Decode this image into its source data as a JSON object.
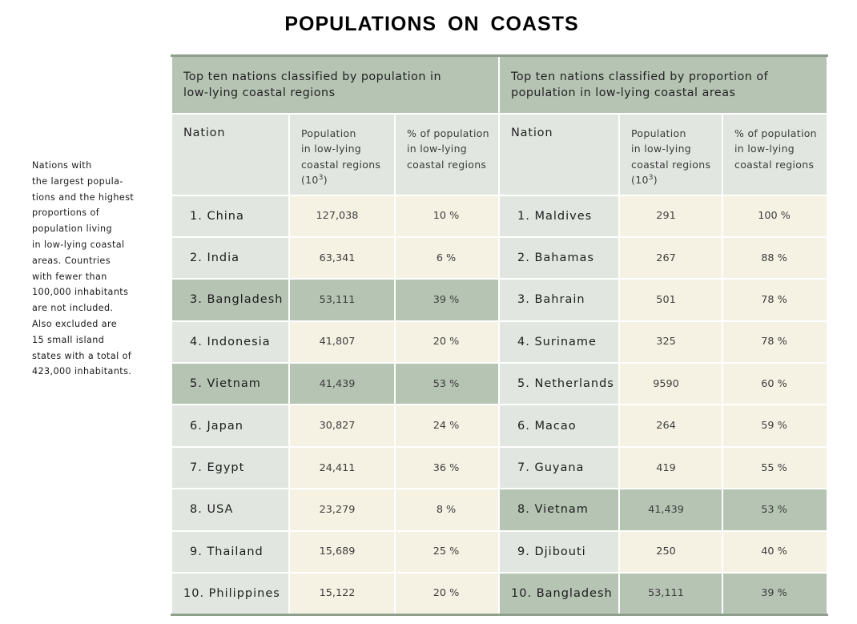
{
  "title": "POPULATIONS  ON  COASTS",
  "sidenote_lines": [
    "Nations with",
    "the largest popula-",
    "tions and the highest",
    "proportions of",
    "population living",
    "in low-lying coastal",
    "areas. Countries",
    "with fewer than",
    "100,000 inhabitants",
    "are not included.",
    "Also excluded are",
    "15 small island",
    "states with a total of",
    "423,000 inhabitants."
  ],
  "left_table": {
    "title_line1": "Top ten nations classified by population in",
    "title_line2": "low-lying coastal regions",
    "headers": {
      "nation": "Nation",
      "population": [
        "Population",
        "in low-lying",
        "coastal regions",
        "(10",
        "3",
        ")"
      ],
      "percent": [
        "% of population",
        "in low-lying",
        "coastal regions"
      ]
    },
    "rows": [
      {
        "rank": "1.",
        "nation": "China",
        "population": "127,038",
        "percent": "10 %",
        "highlighted": false
      },
      {
        "rank": "2.",
        "nation": "India",
        "population": "63,341",
        "percent": "6 %",
        "highlighted": false
      },
      {
        "rank": "3.",
        "nation": "Bangladesh",
        "population": "53,111",
        "percent": "39 %",
        "highlighted": true
      },
      {
        "rank": "4.",
        "nation": "Indonesia",
        "population": "41,807",
        "percent": "20 %",
        "highlighted": false
      },
      {
        "rank": "5.",
        "nation": "Vietnam",
        "population": "41,439",
        "percent": "53 %",
        "highlighted": true
      },
      {
        "rank": "6.",
        "nation": "Japan",
        "population": "30,827",
        "percent": "24 %",
        "highlighted": false
      },
      {
        "rank": "7.",
        "nation": "Egypt",
        "population": "24,411",
        "percent": "36 %",
        "highlighted": false
      },
      {
        "rank": "8.",
        "nation": "USA",
        "population": "23,279",
        "percent": "8 %",
        "highlighted": false
      },
      {
        "rank": "9.",
        "nation": "Thailand",
        "population": "15,689",
        "percent": "25 %",
        "highlighted": false
      },
      {
        "rank": "10.",
        "nation": "Philippines",
        "population": "15,122",
        "percent": "20 %",
        "highlighted": false
      }
    ]
  },
  "right_table": {
    "title_line1": "Top ten nations classified by proportion of",
    "title_line2": "population in low-lying coastal areas",
    "headers": {
      "nation": "Nation",
      "population": [
        "Population",
        "in low-lying",
        "coastal regions",
        "(10",
        "3",
        ")"
      ],
      "percent": [
        "% of population",
        "in low-lying",
        "coastal regions"
      ]
    },
    "rows": [
      {
        "rank": "1.",
        "nation": "Maldives",
        "population": "291",
        "percent": "100 %",
        "highlighted": false
      },
      {
        "rank": "2.",
        "nation": "Bahamas",
        "population": "267",
        "percent": "88 %",
        "highlighted": false
      },
      {
        "rank": "3.",
        "nation": "Bahrain",
        "population": "501",
        "percent": "78 %",
        "highlighted": false
      },
      {
        "rank": "4.",
        "nation": "Suriname",
        "population": "325",
        "percent": "78 %",
        "highlighted": false
      },
      {
        "rank": "5.",
        "nation": "Netherlands",
        "population": "9590",
        "percent": "60 %",
        "highlighted": false
      },
      {
        "rank": "6.",
        "nation": "Macao",
        "population": "264",
        "percent": "59 %",
        "highlighted": false
      },
      {
        "rank": "7.",
        "nation": "Guyana",
        "population": "419",
        "percent": "55 %",
        "highlighted": false
      },
      {
        "rank": "8.",
        "nation": "Vietnam",
        "population": "41,439",
        "percent": "53 %",
        "highlighted": true
      },
      {
        "rank": "9.",
        "nation": "Djibouti",
        "population": "250",
        "percent": "40 %",
        "highlighted": false
      },
      {
        "rank": "10.",
        "nation": "Bangladesh",
        "population": "53,111",
        "percent": "39 %",
        "highlighted": true
      }
    ]
  },
  "colors": {
    "highlight": "#b5c4b3",
    "nation_cell": "#e1e7e0",
    "value_cell": "#f6f2e3",
    "rule": "#8e9f8c"
  }
}
